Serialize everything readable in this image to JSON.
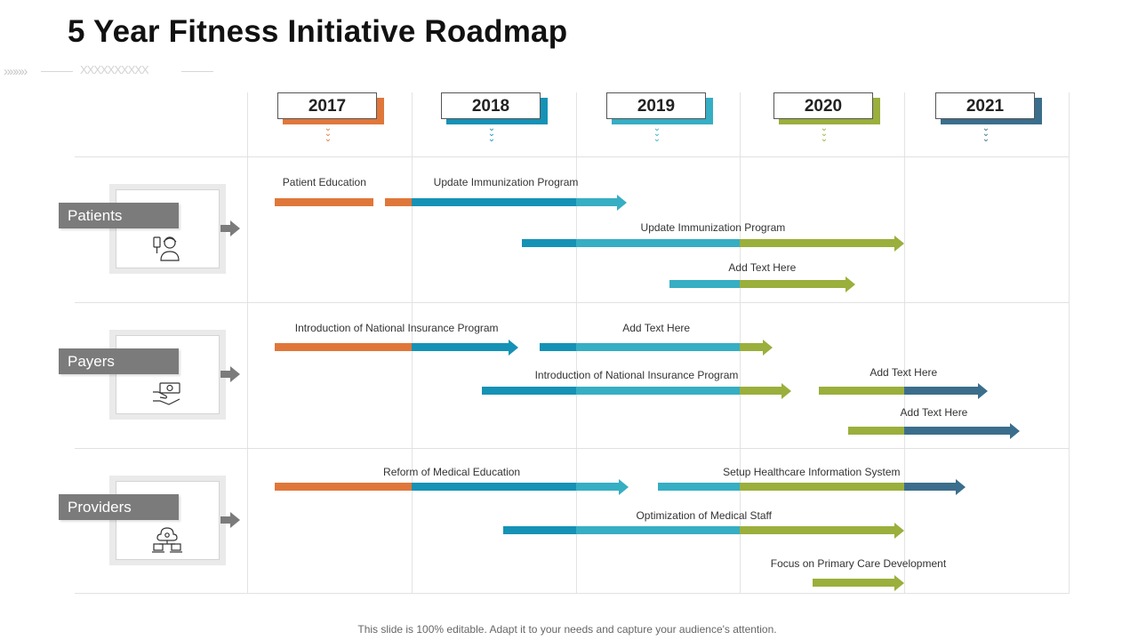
{
  "title": "5 Year Fitness Initiative Roadmap",
  "decoration": {
    "chevrons": "»»»»",
    "crosses": "XXXXXXXXXX"
  },
  "colors": {
    "orange": "#e0773a",
    "blue": "#1592b5",
    "teal": "#36aec3",
    "green": "#9aaf3c",
    "slate": "#3b6e8c"
  },
  "years": [
    {
      "label": "2017",
      "color": "orange"
    },
    {
      "label": "2018",
      "color": "blue"
    },
    {
      "label": "2019",
      "color": "teal"
    },
    {
      "label": "2020",
      "color": "green"
    },
    {
      "label": "2021",
      "color": "slate"
    }
  ],
  "rows": [
    {
      "label": "Patients",
      "icon": "patient-icon",
      "tasks": [
        {
          "label": "Patient Education",
          "start": 2017.17,
          "end": 2017.77,
          "arrow": false
        },
        {
          "label": "Update Immunization Program",
          "start": 2017.84,
          "end": 2019.31,
          "arrow": true
        },
        {
          "label": "Update Immunization Program",
          "start": 2018.67,
          "end": 2021.0,
          "arrow": true
        },
        {
          "label": "Add Text Here",
          "start": 2019.57,
          "end": 2020.7,
          "arrow": true
        }
      ]
    },
    {
      "label": "Payers",
      "icon": "money-hand-icon",
      "tasks": [
        {
          "label": "Introduction of National Insurance Program",
          "start": 2017.17,
          "end": 2018.65,
          "arrow": true
        },
        {
          "label": "Add Text Here",
          "start": 2018.78,
          "end": 2020.2,
          "arrow": true
        },
        {
          "label": "Introduction of National Insurance Program",
          "start": 2018.43,
          "end": 2020.31,
          "arrow": true
        },
        {
          "label": "Add Text Here",
          "start": 2020.48,
          "end": 2021.51,
          "arrow": true
        },
        {
          "label": "Add Text Here",
          "start": 2020.66,
          "end": 2021.7,
          "arrow": true
        }
      ]
    },
    {
      "label": "Providers",
      "icon": "network-icon",
      "tasks": [
        {
          "label": "Reform of Medical Education",
          "start": 2017.17,
          "end": 2019.32,
          "arrow": true
        },
        {
          "label": "Setup Healthcare Information System",
          "start": 2019.5,
          "end": 2021.37,
          "arrow": true
        },
        {
          "label": "Optimization of Medical Staff",
          "start": 2018.56,
          "end": 2021.0,
          "arrow": true
        },
        {
          "label": "Focus on Primary Care Development",
          "start": 2020.44,
          "end": 2021.0,
          "arrow": true
        }
      ]
    }
  ],
  "footer": "This slide is 100% editable. Adapt it to your needs and capture your audience's attention."
}
